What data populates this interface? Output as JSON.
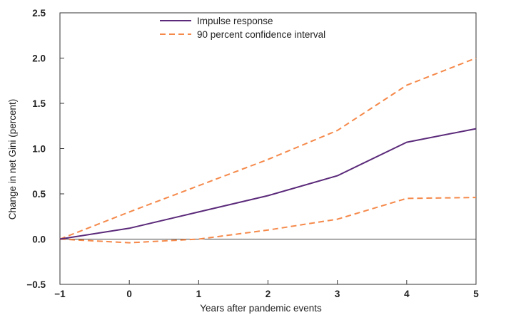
{
  "chart_data": {
    "type": "line",
    "title": "",
    "xlabel": "Years after pandemic events",
    "ylabel": "Change in net Gini (percent)",
    "x": [
      -1,
      0,
      1,
      2,
      3,
      4,
      5
    ],
    "xlim": [
      -1,
      5
    ],
    "ylim": [
      -0.5,
      2.5
    ],
    "x_ticks": [
      -1,
      0,
      1,
      2,
      3,
      4,
      5
    ],
    "x_tick_labels": [
      "−1",
      "0",
      "1",
      "2",
      "3",
      "4",
      "5"
    ],
    "y_ticks": [
      -0.5,
      0,
      0.5,
      1.0,
      1.5,
      2.0,
      2.5
    ],
    "y_tick_labels": [
      "−0.5",
      "0.0",
      "0.5",
      "1.0",
      "1.5",
      "2.0",
      "2.5"
    ],
    "grid": false,
    "zero_line": true,
    "legend_position": "top-center",
    "series": [
      {
        "name": "Impulse response",
        "style": "solid",
        "color": "#5b2a7a",
        "values": [
          0.0,
          0.12,
          0.3,
          0.48,
          0.7,
          1.07,
          1.22
        ]
      },
      {
        "name": "90 percent confidence interval",
        "style": "dashed",
        "color": "#f5894a",
        "values": [
          0.0,
          0.3,
          0.59,
          0.88,
          1.2,
          1.7,
          2.0
        ]
      },
      {
        "name": "",
        "style": "dashed",
        "color": "#f5894a",
        "values": [
          0.0,
          -0.04,
          0.0,
          0.1,
          0.22,
          0.45,
          0.46
        ]
      }
    ]
  }
}
